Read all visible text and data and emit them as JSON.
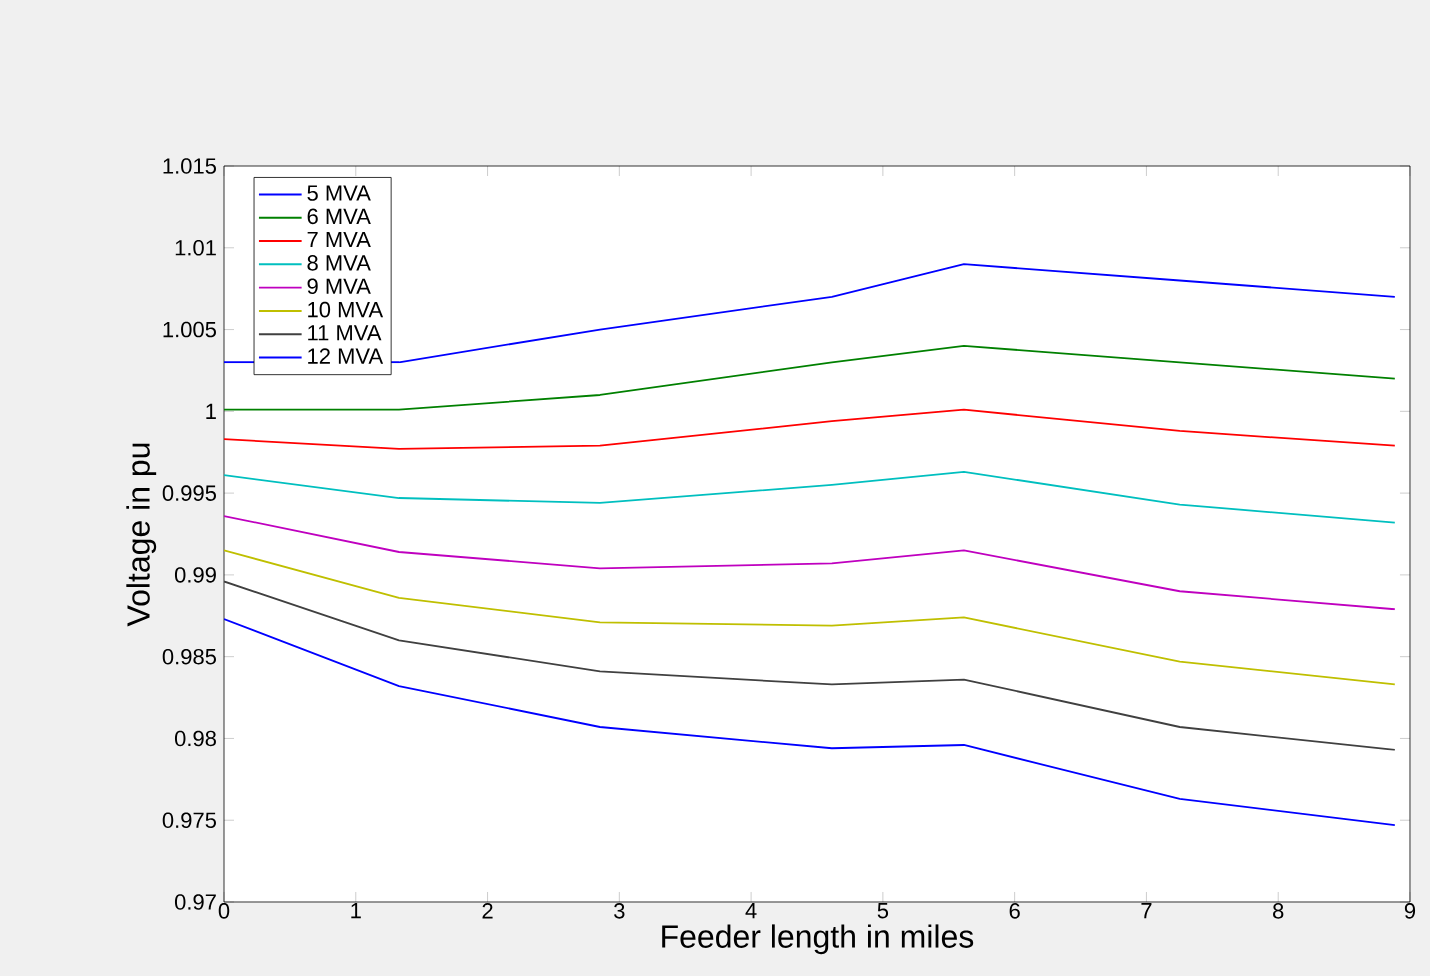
{
  "chart_data": {
    "type": "line",
    "xlabel": "Feeder length in miles",
    "ylabel": "Voltage in pu",
    "x": [
      0,
      1.328,
      2.853,
      4.613,
      5.615,
      7.253,
      8.885
    ],
    "series": [
      {
        "name": "5 MVA",
        "color": "#0000ff",
        "values": [
          1.003,
          1.003,
          1.005,
          1.007,
          1.009,
          1.008,
          1.007
        ]
      },
      {
        "name": "6 MVA",
        "color": "#008000",
        "values": [
          1.0001,
          1.0001,
          1.001,
          1.003,
          1.004,
          1.003,
          1.002
        ]
      },
      {
        "name": "7 MVA",
        "color": "#ff0000",
        "values": [
          0.9983,
          0.9977,
          0.9979,
          0.9994,
          1.0001,
          0.9988,
          0.9979
        ]
      },
      {
        "name": "8 MVA",
        "color": "#00bfbf",
        "values": [
          0.9961,
          0.9947,
          0.9944,
          0.9955,
          0.9963,
          0.9943,
          0.9932
        ]
      },
      {
        "name": "9 MVA",
        "color": "#bf00bf",
        "values": [
          0.9936,
          0.9914,
          0.9904,
          0.9907,
          0.9915,
          0.989,
          0.9879
        ]
      },
      {
        "name": "10 MVA",
        "color": "#bfbf00",
        "values": [
          0.9915,
          0.9886,
          0.9871,
          0.9869,
          0.9874,
          0.9847,
          0.9833
        ]
      },
      {
        "name": "11 MVA",
        "color": "#404040",
        "values": [
          0.9896,
          0.986,
          0.9841,
          0.9833,
          0.9836,
          0.9807,
          0.9793
        ]
      },
      {
        "name": "12 MVA",
        "color": "#0000ff",
        "values": [
          0.9873,
          0.9832,
          0.9807,
          0.9794,
          0.9796,
          0.9763,
          0.9747
        ]
      }
    ],
    "xlim": [
      0,
      9
    ],
    "ylim": [
      0.97,
      1.015
    ],
    "xticks": [
      0,
      1,
      2,
      3,
      4,
      5,
      6,
      7,
      8,
      9
    ],
    "yticks": [
      0.97,
      0.975,
      0.98,
      0.985,
      0.99,
      0.995,
      1,
      1.005,
      1.01,
      1.015
    ],
    "grid": false,
    "legend": "top left"
  }
}
